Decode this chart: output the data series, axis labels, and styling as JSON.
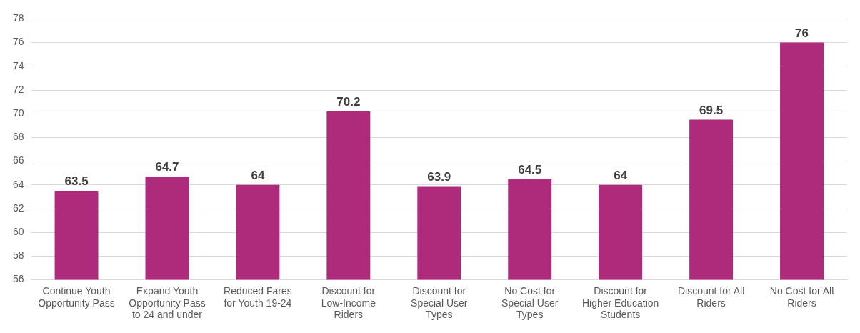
{
  "chart_data": {
    "type": "bar",
    "categories": [
      "Continue Youth Opportunity Pass",
      "Expand Youth Opportunity Pass to 24 and under",
      "Reduced Fares for Youth 19-24",
      "Discount for Low-Income Riders",
      "Discount for Special User Types",
      "No Cost for Special User Types",
      "Discount for Higher Education Students",
      "Discount for All Riders",
      "No Cost for All Riders"
    ],
    "values": [
      63.5,
      64.7,
      64,
      70.2,
      63.9,
      64.5,
      64,
      69.5,
      76
    ],
    "color": "#ae2a7a",
    "ylim": [
      56,
      78
    ],
    "yticks": [
      56,
      58,
      60,
      62,
      64,
      66,
      68,
      70,
      72,
      74,
      76,
      78
    ],
    "grid": "y",
    "data_labels": true
  }
}
